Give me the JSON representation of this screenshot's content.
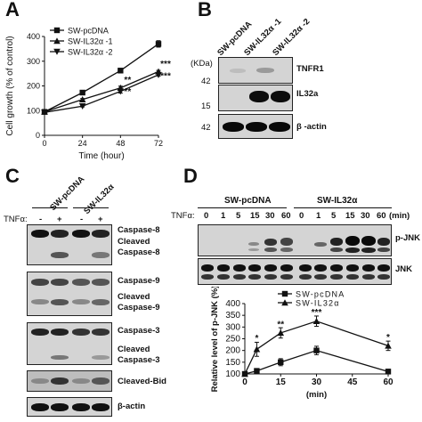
{
  "panels": {
    "a": {
      "letter": "A",
      "legend": [
        "SW-pcDNA",
        "SW-IL32α -1",
        "SW-IL32α -2"
      ]
    },
    "b": {
      "letter": "B",
      "lanes": [
        "SW-pcDNA",
        "SW-IL32α -1",
        "SW-IL32α -2"
      ],
      "kda_label": "(KDa)",
      "markers": [
        "42",
        "15",
        "42"
      ],
      "blots": [
        "TNFR1",
        "IL32a",
        "β -actin"
      ]
    },
    "c": {
      "letter": "C",
      "groups": [
        "SW-pcDNA",
        "SW-IL32α"
      ],
      "treatment_label": "TNFα:",
      "treatment_signs": [
        "-",
        "+",
        "-",
        "+"
      ],
      "blots": [
        {
          "top": "Caspase-8",
          "mid": "Cleaved",
          "bot": "Caspase-8"
        },
        {
          "top": "Caspase-9",
          "mid": "Cleaved",
          "bot": "Caspase-9"
        },
        {
          "top": "Caspase-3",
          "mid": "Cleaved",
          "bot": "Caspase-3"
        }
      ],
      "extra_blots": [
        "Cleaved-Bid",
        "β-actin"
      ]
    },
    "d": {
      "letter": "D",
      "groups": [
        "SW-pcDNA",
        "SW-IL32α"
      ],
      "treatment_label": "TNFα:",
      "times": [
        "0",
        "1",
        "5",
        "15",
        "30",
        "60",
        "0",
        "1",
        "5",
        "15",
        "30",
        "60"
      ],
      "time_unit": "(min)",
      "blots": [
        "p-JNK",
        "JNK"
      ]
    }
  },
  "chart_data": [
    {
      "id": "A",
      "type": "line",
      "xlabel": "Time (hour)",
      "ylabel": "Cell growth (% of control)",
      "x": [
        0,
        24,
        48,
        72
      ],
      "xticks": [
        0,
        24,
        48,
        72
      ],
      "yticks": [
        0,
        100,
        200,
        300,
        400
      ],
      "xlim": [
        0,
        72
      ],
      "ylim": [
        0,
        400
      ],
      "series": [
        {
          "name": "SW-pcDNA",
          "marker": "square",
          "values": [
            95,
            173,
            262,
            370
          ],
          "err": [
            4,
            4,
            9,
            13
          ]
        },
        {
          "name": "SW-IL32α -1",
          "marker": "triangle-up",
          "values": [
            95,
            145,
            192,
            258
          ],
          "err": [
            4,
            4,
            7,
            5
          ]
        },
        {
          "name": "SW-IL32α -2",
          "marker": "triangle-down",
          "values": [
            93,
            118,
            178,
            245
          ],
          "err": [
            4,
            3,
            7,
            5
          ]
        }
      ],
      "annotations": [
        {
          "x": 48,
          "text": "**",
          "y": 212
        },
        {
          "x": 48,
          "text": "**",
          "y": 165
        },
        {
          "x": 72,
          "text": "***",
          "y": 278
        },
        {
          "x": 72,
          "text": "***",
          "y": 228
        }
      ]
    },
    {
      "id": "D",
      "type": "line",
      "xlabel": "(min)",
      "ylabel": "Relative level of p-JNK (%)",
      "x": [
        0,
        5,
        15,
        30,
        60
      ],
      "xticks": [
        0,
        15,
        30,
        45,
        60
      ],
      "yticks": [
        100,
        150,
        200,
        250,
        300,
        350,
        400
      ],
      "xlim": [
        0,
        60
      ],
      "ylim": [
        100,
        400
      ],
      "series": [
        {
          "name": "SW-pcDNA",
          "marker": "square",
          "values": [
            100,
            113,
            150,
            200,
            110
          ],
          "err": [
            0,
            5,
            15,
            18,
            10
          ]
        },
        {
          "name": "SW-IL32α",
          "marker": "triangle-up",
          "values": [
            100,
            205,
            275,
            325,
            220
          ],
          "err": [
            0,
            30,
            22,
            22,
            20
          ]
        }
      ],
      "annotations": [
        {
          "x": 5,
          "text": "*",
          "y": 240
        },
        {
          "x": 15,
          "text": "**",
          "y": 300
        },
        {
          "x": 30,
          "text": "***",
          "y": 350
        },
        {
          "x": 60,
          "text": "*",
          "y": 245
        }
      ]
    }
  ]
}
